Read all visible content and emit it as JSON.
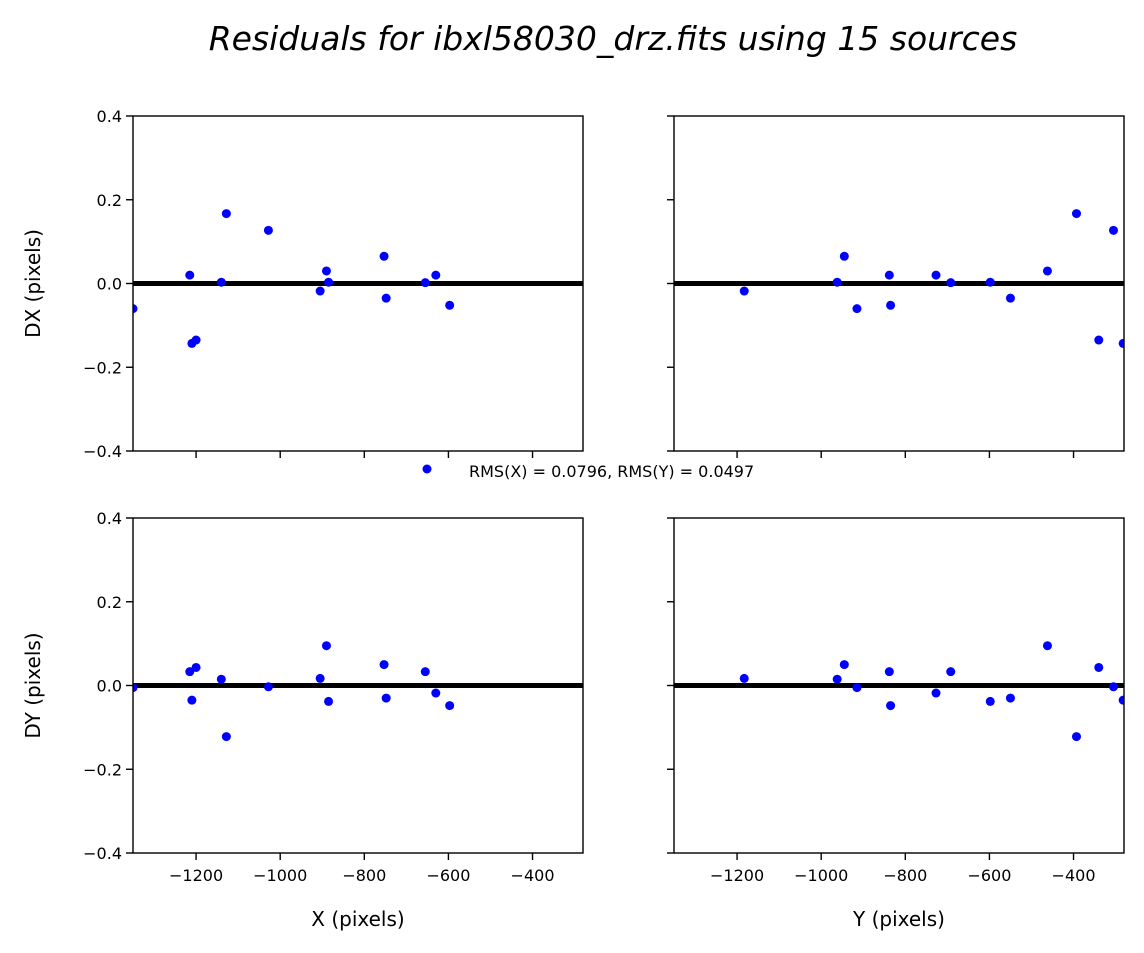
{
  "chart_data": {
    "type": "scatter",
    "title": "Residuals for ibxl58030_drz.fits using 15 sources",
    "legend": {
      "label": "RMS(X) = 0.0796, RMS(Y) = 0.0497",
      "placement": "center"
    },
    "marker_color": "#0000ff",
    "zero_line_color": "#000000",
    "grid": false,
    "panels": [
      {
        "id": "dx-vs-x",
        "xlabel": "",
        "ylabel": "DX (pixels)",
        "xlim": [
          -1350,
          -280
        ],
        "ylim": [
          -0.4,
          0.4
        ],
        "xticks": [
          -1200,
          -1000,
          -800,
          -600,
          -400
        ],
        "yticks": [
          -0.4,
          -0.2,
          0.0,
          0.2,
          0.4
        ],
        "ytick_labels": [
          "−0.4",
          "−0.2",
          "0.0",
          "0.2",
          "0.4"
        ],
        "show_xtick_labels": false,
        "show_ytick_labels": true,
        "points": [
          [
            -1350,
            -0.06
          ],
          [
            -1215,
            0.02
          ],
          [
            -1210,
            -0.143
          ],
          [
            -1200,
            -0.135
          ],
          [
            -1140,
            0.003
          ],
          [
            -1128,
            0.167
          ],
          [
            -1028,
            0.127
          ],
          [
            -905,
            -0.018
          ],
          [
            -890,
            0.03
          ],
          [
            -885,
            0.003
          ],
          [
            -753,
            0.065
          ],
          [
            -748,
            -0.035
          ],
          [
            -655,
            0.002
          ],
          [
            -630,
            0.02
          ],
          [
            -597,
            -0.052
          ]
        ]
      },
      {
        "id": "dx-vs-y",
        "xlabel": "",
        "ylabel": "",
        "xlim": [
          -1350,
          -280
        ],
        "ylim": [
          -0.4,
          0.4
        ],
        "xticks": [
          -1200,
          -1000,
          -800,
          -600,
          -400
        ],
        "yticks": [
          -0.4,
          -0.2,
          0.0,
          0.2,
          0.4
        ],
        "show_xtick_labels": false,
        "show_ytick_labels": false,
        "points": [
          [
            -1183,
            -0.018
          ],
          [
            -962,
            0.003
          ],
          [
            -945,
            0.065
          ],
          [
            -915,
            -0.06
          ],
          [
            -838,
            0.02
          ],
          [
            -835,
            -0.052
          ],
          [
            -727,
            0.02
          ],
          [
            -692,
            0.002
          ],
          [
            -598,
            0.003
          ],
          [
            -550,
            -0.035
          ],
          [
            -462,
            0.03
          ],
          [
            -393,
            0.167
          ],
          [
            -340,
            -0.135
          ],
          [
            -305,
            0.127
          ],
          [
            -282,
            -0.143
          ]
        ]
      },
      {
        "id": "dy-vs-x",
        "xlabel": "X (pixels)",
        "ylabel": "DY (pixels)",
        "xlim": [
          -1350,
          -280
        ],
        "ylim": [
          -0.4,
          0.4
        ],
        "xticks": [
          -1200,
          -1000,
          -800,
          -600,
          -400
        ],
        "xtick_labels": [
          "−1200",
          "−1000",
          "−800",
          "−600",
          "−400"
        ],
        "yticks": [
          -0.4,
          -0.2,
          0.0,
          0.2,
          0.4
        ],
        "ytick_labels": [
          "−0.4",
          "−0.2",
          "0.0",
          "0.2",
          "0.4"
        ],
        "show_xtick_labels": true,
        "show_ytick_labels": true,
        "points": [
          [
            -1350,
            -0.005
          ],
          [
            -1215,
            0.033
          ],
          [
            -1210,
            -0.035
          ],
          [
            -1200,
            0.043
          ],
          [
            -1140,
            0.015
          ],
          [
            -1128,
            -0.122
          ],
          [
            -1028,
            -0.003
          ],
          [
            -905,
            0.017
          ],
          [
            -890,
            0.095
          ],
          [
            -885,
            -0.038
          ],
          [
            -753,
            0.05
          ],
          [
            -748,
            -0.03
          ],
          [
            -655,
            0.033
          ],
          [
            -630,
            -0.018
          ],
          [
            -597,
            -0.048
          ]
        ]
      },
      {
        "id": "dy-vs-y",
        "xlabel": "Y (pixels)",
        "ylabel": "",
        "xlim": [
          -1350,
          -280
        ],
        "ylim": [
          -0.4,
          0.4
        ],
        "xticks": [
          -1200,
          -1000,
          -800,
          -600,
          -400
        ],
        "xtick_labels": [
          "−1200",
          "−1000",
          "−800",
          "−600",
          "−400"
        ],
        "yticks": [
          -0.4,
          -0.2,
          0.0,
          0.2,
          0.4
        ],
        "show_xtick_labels": true,
        "show_ytick_labels": false,
        "points": [
          [
            -1183,
            0.017
          ],
          [
            -962,
            0.015
          ],
          [
            -945,
            0.05
          ],
          [
            -915,
            -0.005
          ],
          [
            -838,
            0.033
          ],
          [
            -835,
            -0.048
          ],
          [
            -727,
            -0.018
          ],
          [
            -692,
            0.033
          ],
          [
            -598,
            -0.038
          ],
          [
            -550,
            -0.03
          ],
          [
            -462,
            0.095
          ],
          [
            -393,
            -0.122
          ],
          [
            -340,
            0.043
          ],
          [
            -305,
            -0.003
          ],
          [
            -282,
            -0.035
          ]
        ]
      }
    ]
  }
}
